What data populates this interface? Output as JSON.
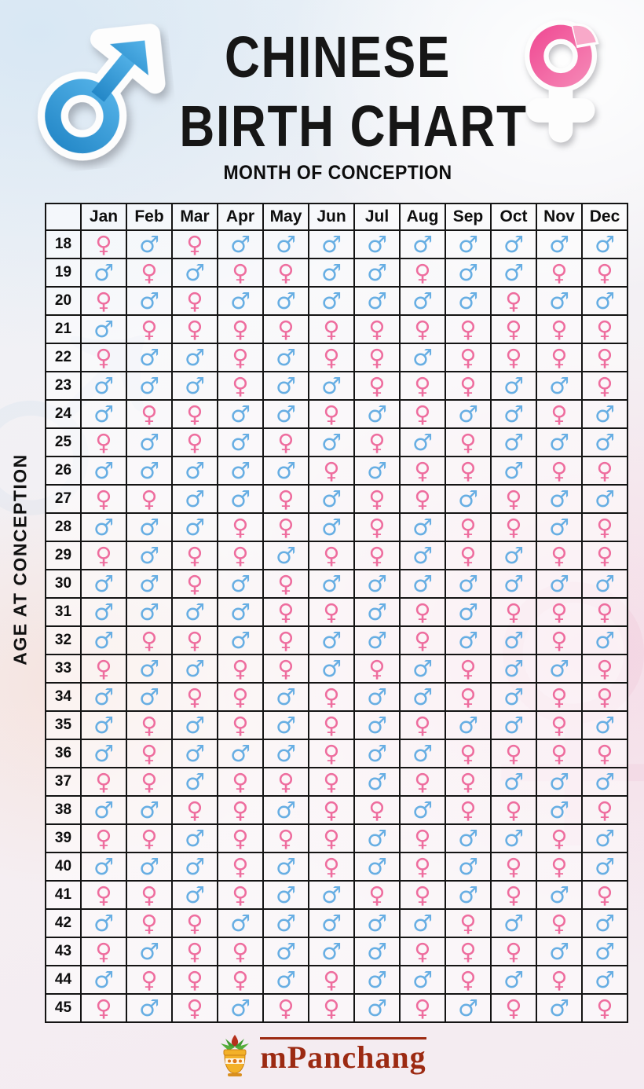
{
  "header": {
    "title_line1": "CHINESE",
    "title_line2": "BIRTH CHART",
    "subtitle": "MONTH OF CONCEPTION"
  },
  "symbols": {
    "male": "♂",
    "female": "♀"
  },
  "colors": {
    "male_symbol": "#67aee3",
    "female_symbol": "#ee6d9e",
    "title_text": "#161616",
    "brand": "#9c2a12",
    "male_sticker": "#2f97d8",
    "female_sticker": "#f272a8"
  },
  "chart_data": {
    "type": "table",
    "title": "CHINESE BIRTH CHART",
    "x_axis_label": "MONTH OF CONCEPTION",
    "y_axis_label": "AGE AT CONCEPTION",
    "legend": {
      "M": "male",
      "F": "female"
    },
    "columns": [
      "Jan",
      "Feb",
      "Mar",
      "Apr",
      "May",
      "Jun",
      "Jul",
      "Aug",
      "Sep",
      "Oct",
      "Nov",
      "Dec"
    ],
    "rows": [
      {
        "age": "18",
        "genders": [
          "F",
          "M",
          "F",
          "M",
          "M",
          "M",
          "M",
          "M",
          "M",
          "M",
          "M",
          "M"
        ]
      },
      {
        "age": "19",
        "genders": [
          "M",
          "F",
          "M",
          "F",
          "F",
          "M",
          "M",
          "F",
          "M",
          "M",
          "F",
          "F"
        ]
      },
      {
        "age": "20",
        "genders": [
          "F",
          "M",
          "F",
          "M",
          "M",
          "M",
          "M",
          "M",
          "M",
          "F",
          "M",
          "M"
        ]
      },
      {
        "age": "21",
        "genders": [
          "M",
          "F",
          "F",
          "F",
          "F",
          "F",
          "F",
          "F",
          "F",
          "F",
          "F",
          "F"
        ]
      },
      {
        "age": "22",
        "genders": [
          "F",
          "M",
          "M",
          "F",
          "M",
          "F",
          "F",
          "M",
          "F",
          "F",
          "F",
          "F"
        ]
      },
      {
        "age": "23",
        "genders": [
          "M",
          "M",
          "M",
          "F",
          "M",
          "M",
          "F",
          "F",
          "F",
          "M",
          "M",
          "F"
        ]
      },
      {
        "age": "24",
        "genders": [
          "M",
          "F",
          "F",
          "M",
          "M",
          "F",
          "M",
          "F",
          "M",
          "M",
          "F",
          "M"
        ]
      },
      {
        "age": "25",
        "genders": [
          "F",
          "M",
          "F",
          "M",
          "F",
          "M",
          "F",
          "M",
          "F",
          "M",
          "M",
          "M"
        ]
      },
      {
        "age": "26",
        "genders": [
          "M",
          "M",
          "M",
          "M",
          "M",
          "F",
          "M",
          "F",
          "F",
          "M",
          "F",
          "F"
        ]
      },
      {
        "age": "27",
        "genders": [
          "F",
          "F",
          "M",
          "M",
          "F",
          "M",
          "F",
          "F",
          "M",
          "F",
          "M",
          "M"
        ]
      },
      {
        "age": "28",
        "genders": [
          "M",
          "M",
          "M",
          "F",
          "F",
          "M",
          "F",
          "M",
          "F",
          "F",
          "M",
          "F"
        ]
      },
      {
        "age": "29",
        "genders": [
          "F",
          "M",
          "F",
          "F",
          "M",
          "F",
          "F",
          "M",
          "F",
          "M",
          "F",
          "F"
        ]
      },
      {
        "age": "30",
        "genders": [
          "M",
          "M",
          "F",
          "M",
          "F",
          "M",
          "M",
          "M",
          "M",
          "M",
          "M",
          "M"
        ]
      },
      {
        "age": "31",
        "genders": [
          "M",
          "M",
          "M",
          "M",
          "F",
          "F",
          "M",
          "F",
          "M",
          "F",
          "F",
          "F"
        ]
      },
      {
        "age": "32",
        "genders": [
          "M",
          "F",
          "F",
          "M",
          "F",
          "M",
          "M",
          "F",
          "M",
          "M",
          "F",
          "M"
        ]
      },
      {
        "age": "33",
        "genders": [
          "F",
          "M",
          "M",
          "F",
          "F",
          "M",
          "F",
          "M",
          "F",
          "M",
          "M",
          "F"
        ]
      },
      {
        "age": "34",
        "genders": [
          "M",
          "M",
          "F",
          "F",
          "M",
          "F",
          "M",
          "M",
          "F",
          "M",
          "F",
          "F"
        ]
      },
      {
        "age": "35",
        "genders": [
          "M",
          "F",
          "M",
          "F",
          "M",
          "F",
          "M",
          "F",
          "M",
          "M",
          "F",
          "M"
        ]
      },
      {
        "age": "36",
        "genders": [
          "M",
          "F",
          "M",
          "M",
          "M",
          "F",
          "M",
          "M",
          "F",
          "F",
          "F",
          "F"
        ]
      },
      {
        "age": "37",
        "genders": [
          "F",
          "F",
          "M",
          "F",
          "F",
          "F",
          "M",
          "F",
          "F",
          "M",
          "M",
          "M"
        ]
      },
      {
        "age": "38",
        "genders": [
          "M",
          "M",
          "F",
          "F",
          "M",
          "F",
          "F",
          "M",
          "F",
          "F",
          "M",
          "F"
        ]
      },
      {
        "age": "39",
        "genders": [
          "F",
          "F",
          "M",
          "F",
          "F",
          "F",
          "M",
          "F",
          "M",
          "M",
          "F",
          "M"
        ]
      },
      {
        "age": "40",
        "genders": [
          "M",
          "M",
          "M",
          "F",
          "M",
          "F",
          "M",
          "F",
          "M",
          "F",
          "F",
          "M"
        ]
      },
      {
        "age": "41",
        "genders": [
          "F",
          "F",
          "M",
          "F",
          "M",
          "M",
          "F",
          "F",
          "M",
          "F",
          "M",
          "F"
        ]
      },
      {
        "age": "42",
        "genders": [
          "M",
          "F",
          "F",
          "M",
          "M",
          "M",
          "M",
          "M",
          "F",
          "M",
          "F",
          "M"
        ]
      },
      {
        "age": "43",
        "genders": [
          "F",
          "M",
          "F",
          "F",
          "M",
          "M",
          "M",
          "F",
          "F",
          "F",
          "M",
          "M"
        ]
      },
      {
        "age": "44",
        "genders": [
          "M",
          "F",
          "F",
          "F",
          "M",
          "F",
          "M",
          "M",
          "F",
          "M",
          "F",
          "M"
        ]
      },
      {
        "age": "45",
        "genders": [
          "F",
          "M",
          "F",
          "M",
          "F",
          "F",
          "M",
          "F",
          "M",
          "F",
          "M",
          "F"
        ]
      }
    ]
  },
  "footer": {
    "brand": "mPanchang"
  }
}
